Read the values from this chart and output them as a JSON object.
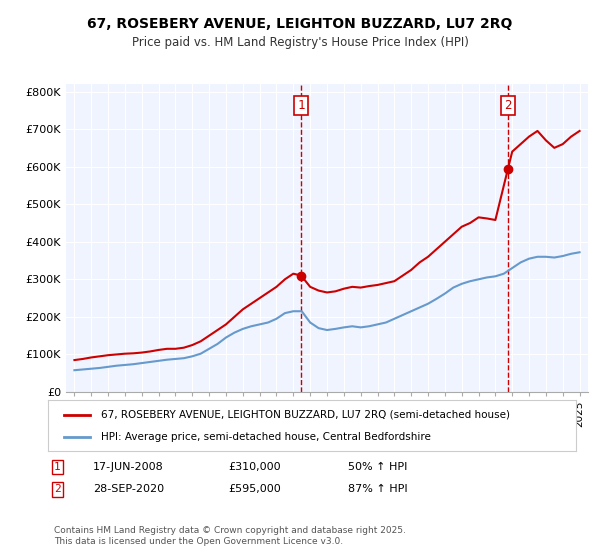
{
  "title": "67, ROSEBERY AVENUE, LEIGHTON BUZZARD, LU7 2RQ",
  "subtitle": "Price paid vs. HM Land Registry's House Price Index (HPI)",
  "legend_line1": "67, ROSEBERY AVENUE, LEIGHTON BUZZARD, LU7 2RQ (semi-detached house)",
  "legend_line2": "HPI: Average price, semi-detached house, Central Bedfordshire",
  "footer": "Contains HM Land Registry data © Crown copyright and database right 2025.\nThis data is licensed under the Open Government Licence v3.0.",
  "transaction1_label": "1",
  "transaction1_date": "17-JUN-2008",
  "transaction1_price": "£310,000",
  "transaction1_hpi": "50% ↑ HPI",
  "transaction2_label": "2",
  "transaction2_date": "28-SEP-2020",
  "transaction2_price": "£595,000",
  "transaction2_hpi": "87% ↑ HPI",
  "red_color": "#cc0000",
  "blue_color": "#6699cc",
  "background_color": "#f0f4ff",
  "vline1_x": 2008.46,
  "vline2_x": 2020.75,
  "marker1_red_x": 2008.46,
  "marker1_red_y": 310000,
  "marker2_red_x": 2020.75,
  "marker2_red_y": 595000,
  "ylim": [
    0,
    820000
  ],
  "xlim": [
    1994.5,
    2025.5
  ],
  "yticks": [
    0,
    100000,
    200000,
    300000,
    400000,
    500000,
    600000,
    700000,
    800000
  ],
  "ytick_labels": [
    "£0",
    "£100K",
    "£200K",
    "£300K",
    "£400K",
    "£500K",
    "£600K",
    "£700K",
    "£800K"
  ],
  "xticks": [
    1995,
    1996,
    1997,
    1998,
    1999,
    2000,
    2001,
    2002,
    2003,
    2004,
    2005,
    2006,
    2007,
    2008,
    2009,
    2010,
    2011,
    2012,
    2013,
    2014,
    2015,
    2016,
    2017,
    2018,
    2019,
    2020,
    2021,
    2022,
    2023,
    2024,
    2025
  ],
  "red_x": [
    1995,
    1995.5,
    1996,
    1996.5,
    1997,
    1997.5,
    1998,
    1998.5,
    1999,
    1999.5,
    2000,
    2000.5,
    2001,
    2001.5,
    2002,
    2002.5,
    2003,
    2003.5,
    2004,
    2004.5,
    2005,
    2005.5,
    2006,
    2006.5,
    2007,
    2007.5,
    2008,
    2008.46,
    2009,
    2009.5,
    2010,
    2010.5,
    2011,
    2011.5,
    2012,
    2012.5,
    2013,
    2013.5,
    2014,
    2014.5,
    2015,
    2015.5,
    2016,
    2016.5,
    2017,
    2017.5,
    2018,
    2018.5,
    2019,
    2019.5,
    2020,
    2020.75,
    2021,
    2021.5,
    2022,
    2022.5,
    2023,
    2023.5,
    2024,
    2024.5,
    2025
  ],
  "red_y": [
    85000,
    88000,
    92000,
    95000,
    98000,
    100000,
    102000,
    103000,
    105000,
    108000,
    112000,
    115000,
    115000,
    118000,
    125000,
    135000,
    150000,
    165000,
    180000,
    200000,
    220000,
    235000,
    250000,
    265000,
    280000,
    300000,
    315000,
    310000,
    280000,
    270000,
    265000,
    268000,
    275000,
    280000,
    278000,
    282000,
    285000,
    290000,
    295000,
    310000,
    325000,
    345000,
    360000,
    380000,
    400000,
    420000,
    440000,
    450000,
    465000,
    462000,
    458000,
    595000,
    640000,
    660000,
    680000,
    695000,
    670000,
    650000,
    660000,
    680000,
    695000
  ],
  "blue_x": [
    1995,
    1995.5,
    1996,
    1996.5,
    1997,
    1997.5,
    1998,
    1998.5,
    1999,
    1999.5,
    2000,
    2000.5,
    2001,
    2001.5,
    2002,
    2002.5,
    2003,
    2003.5,
    2004,
    2004.5,
    2005,
    2005.5,
    2006,
    2006.5,
    2007,
    2007.5,
    2008,
    2008.5,
    2009,
    2009.5,
    2010,
    2010.5,
    2011,
    2011.5,
    2012,
    2012.5,
    2013,
    2013.5,
    2014,
    2014.5,
    2015,
    2015.5,
    2016,
    2016.5,
    2017,
    2017.5,
    2018,
    2018.5,
    2019,
    2019.5,
    2020,
    2020.5,
    2021,
    2021.5,
    2022,
    2022.5,
    2023,
    2023.5,
    2024,
    2024.5,
    2025
  ],
  "blue_y": [
    58000,
    60000,
    62000,
    64000,
    67000,
    70000,
    72000,
    74000,
    77000,
    80000,
    83000,
    86000,
    88000,
    90000,
    95000,
    102000,
    115000,
    128000,
    145000,
    158000,
    168000,
    175000,
    180000,
    185000,
    195000,
    210000,
    215000,
    215000,
    185000,
    170000,
    165000,
    168000,
    172000,
    175000,
    172000,
    175000,
    180000,
    185000,
    195000,
    205000,
    215000,
    225000,
    235000,
    248000,
    262000,
    278000,
    288000,
    295000,
    300000,
    305000,
    308000,
    315000,
    330000,
    345000,
    355000,
    360000,
    360000,
    358000,
    362000,
    368000,
    372000
  ]
}
